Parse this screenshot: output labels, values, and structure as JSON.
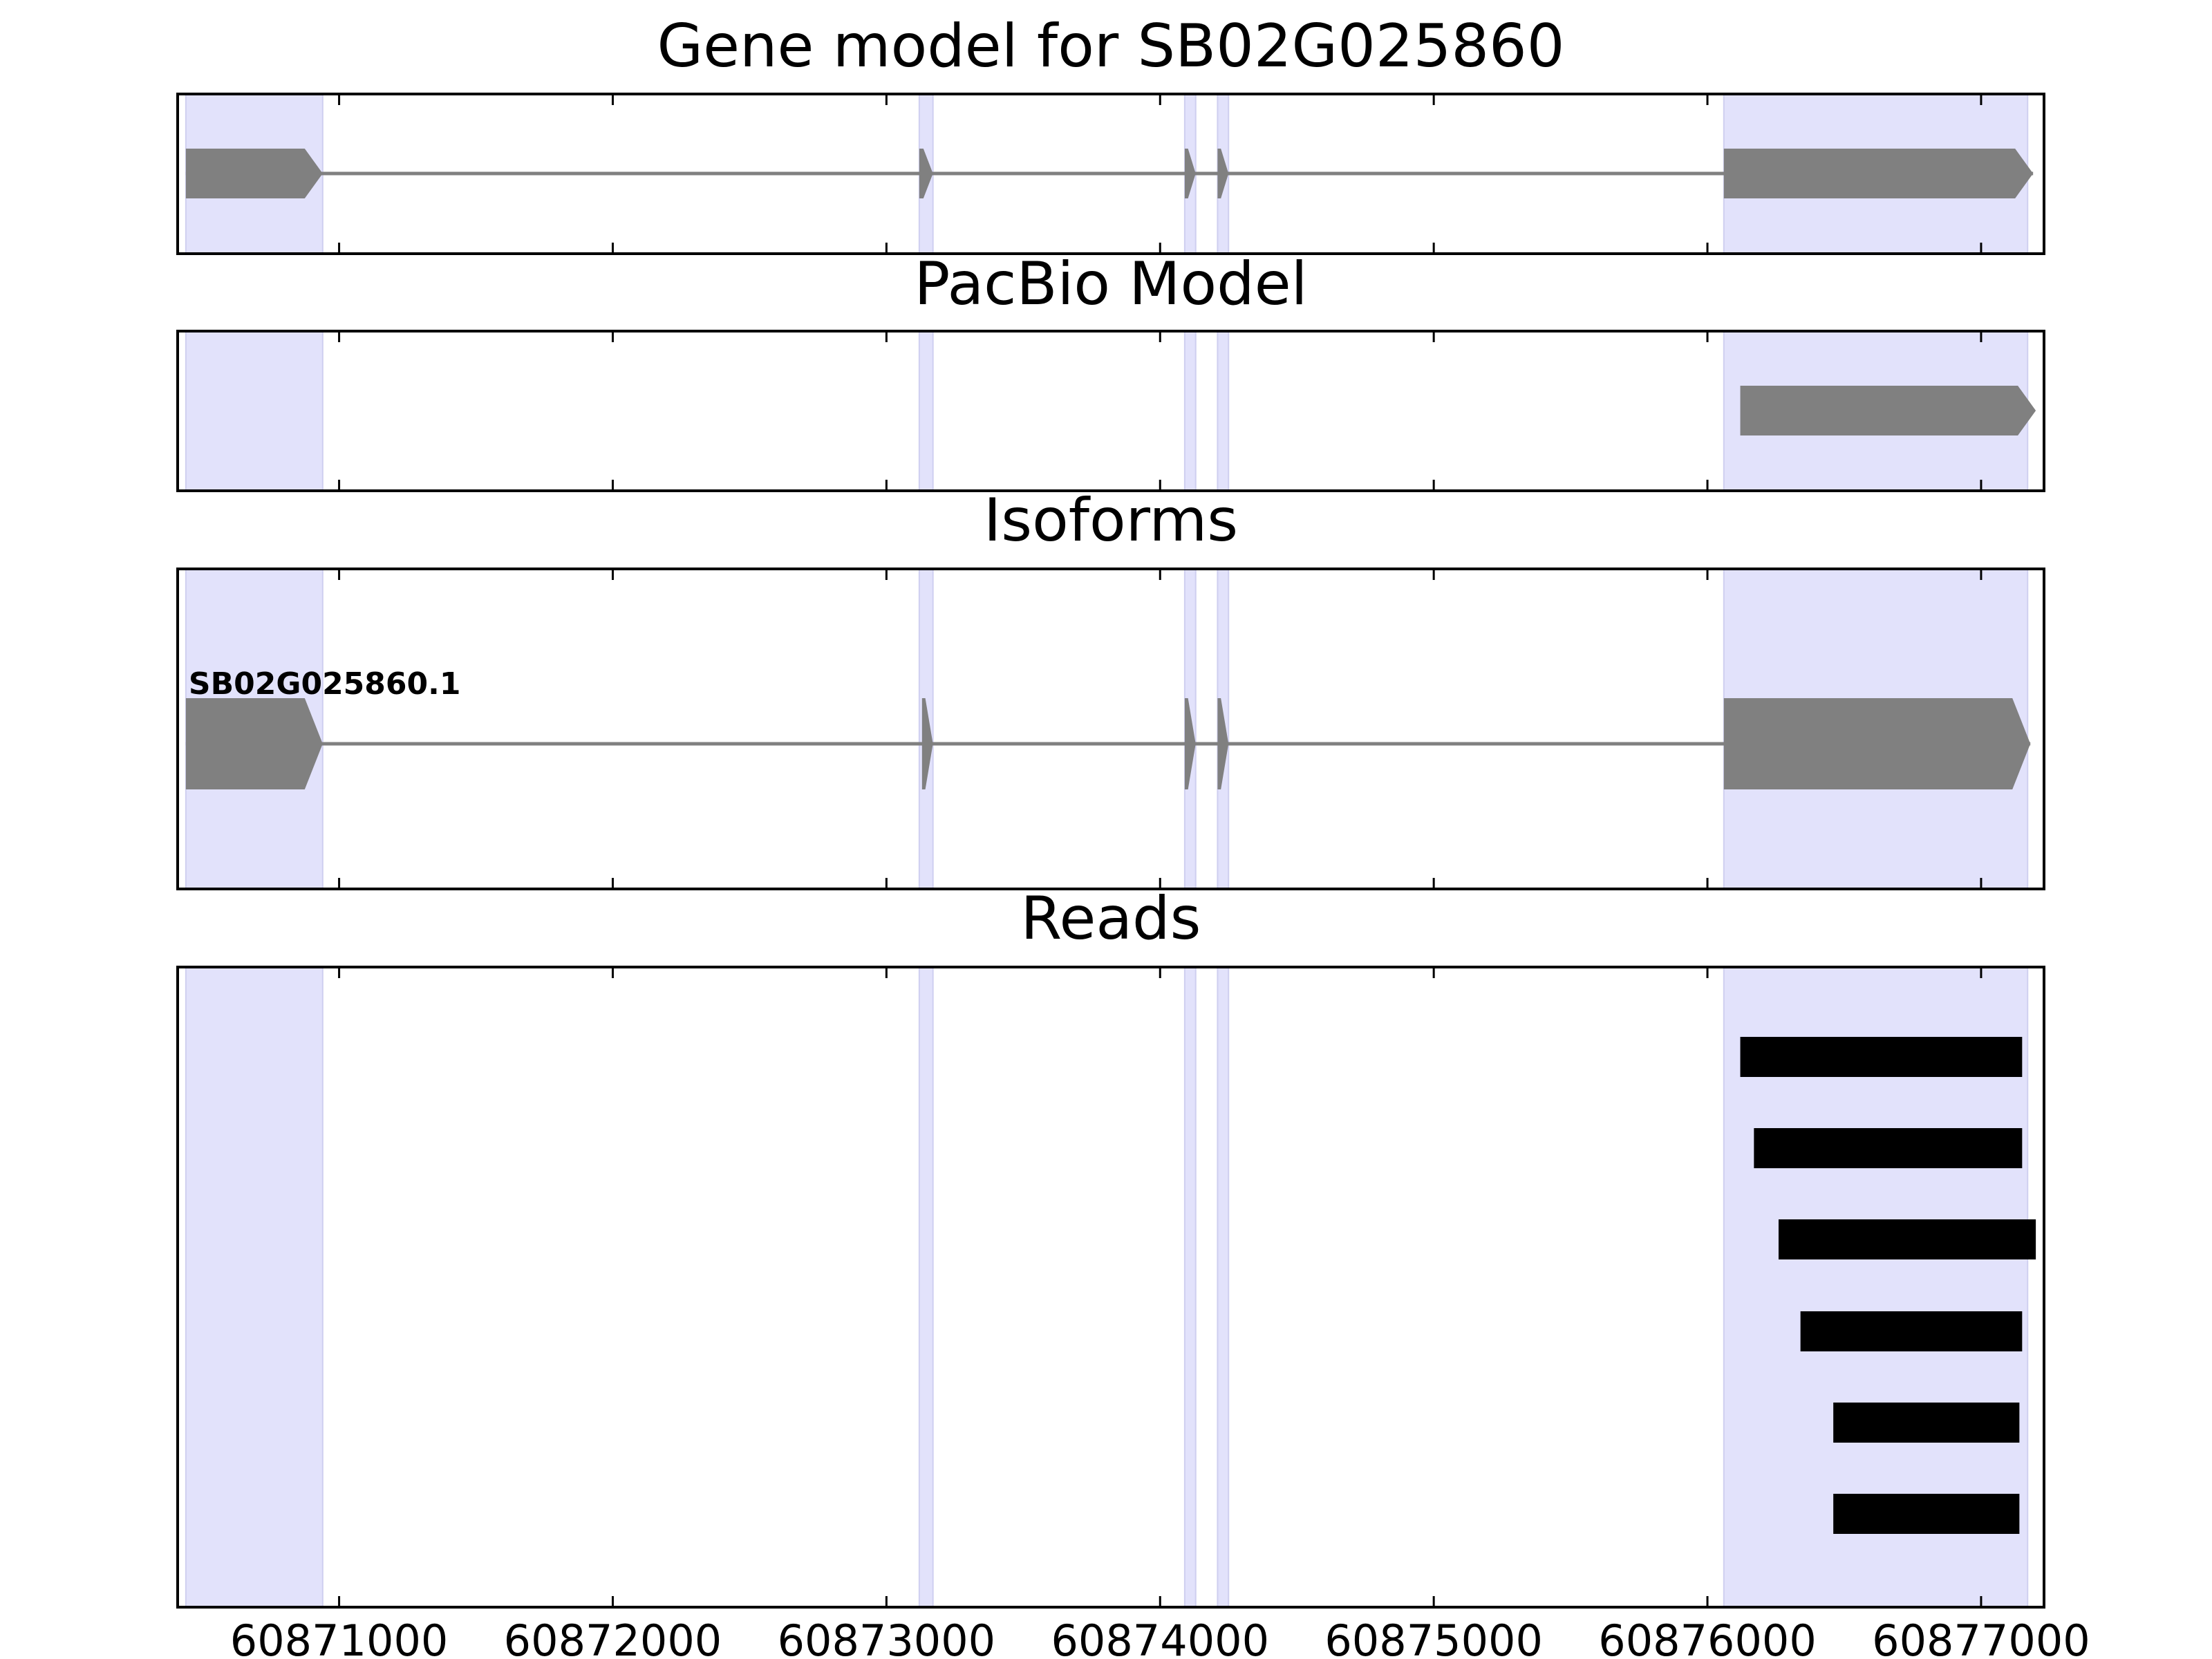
{
  "chart_data": {
    "type": "gene-model",
    "xlim": [
      60870410,
      60877230
    ],
    "x_ticks": [
      "60871000",
      "60872000",
      "60873000",
      "60874000",
      "60875000",
      "60876000",
      "60877000"
    ],
    "exon_shading": [
      [
        60870440,
        60870940
      ],
      [
        60873120,
        60873170
      ],
      [
        60874090,
        60874130
      ],
      [
        60874210,
        60874250
      ],
      [
        60876060,
        60877170
      ]
    ],
    "panels": [
      {
        "title": "Gene model for SB02G025860",
        "features": [
          {
            "strand": "+",
            "intron": [
              60870440,
              60877190
            ],
            "exons": [
              [
                60870440,
                60870940
              ],
              [
                60873120,
                60873170
              ],
              [
                60874090,
                60874130
              ],
              [
                60874210,
                60874250
              ],
              [
                60876060,
                60877190
              ]
            ]
          }
        ]
      },
      {
        "title": "PacBio Model",
        "features": [
          {
            "strand": "+",
            "exons": [
              [
                60876120,
                60877200
              ]
            ]
          }
        ]
      },
      {
        "title": "Isoforms",
        "features": [
          {
            "label": "SB02G025860.1",
            "strand": "+",
            "intron": [
              60870440,
              60877180
            ],
            "exons": [
              [
                60870440,
                60870940
              ],
              [
                60873130,
                60873170
              ],
              [
                60874090,
                60874130
              ],
              [
                60874210,
                60874250
              ],
              [
                60876060,
                60877180
              ]
            ]
          }
        ]
      },
      {
        "title": "Reads",
        "reads": [
          [
            60876120,
            60877150
          ],
          [
            60876170,
            60877150
          ],
          [
            60876260,
            60877200
          ],
          [
            60876340,
            60877150
          ],
          [
            60876460,
            60877140
          ],
          [
            60876460,
            60877140
          ]
        ]
      }
    ],
    "colors": {
      "exon": "#808080",
      "intron": "#808080",
      "read": "#000000",
      "shade": "#e2e2fb",
      "axis": "#000000"
    }
  }
}
